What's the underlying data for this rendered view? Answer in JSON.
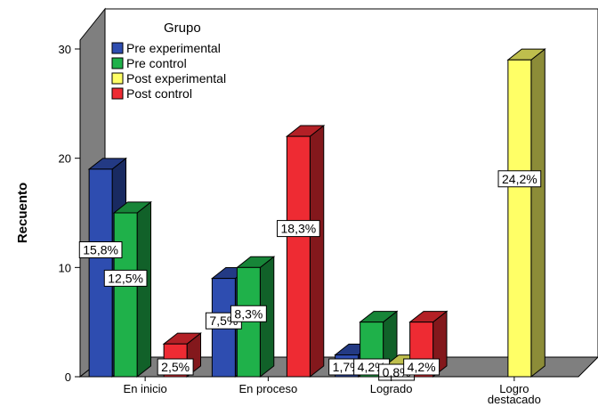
{
  "chart_data": {
    "type": "bar",
    "subtype": "3d-clustered",
    "ylabel": "Recuento",
    "ylim": [
      0,
      30
    ],
    "yticks": [
      0,
      10,
      20,
      30
    ],
    "categories": [
      "En inicio",
      "En proceso",
      "Logrado",
      "Logro destacado"
    ],
    "legend": {
      "title": "Grupo",
      "placement": "top-left"
    },
    "series": [
      {
        "name": "Pre experimental",
        "color": "#2E4DB0",
        "values": [
          19,
          9,
          2,
          0
        ],
        "labels": [
          "15,8%",
          "7,5%",
          "1,7%",
          ""
        ]
      },
      {
        "name": "Pre control",
        "color": "#1FB14A",
        "values": [
          15,
          10,
          5,
          0
        ],
        "labels": [
          "12,5%",
          "8,3%",
          "4,2%",
          ""
        ]
      },
      {
        "name": "Post experimental",
        "color": "#FFFF66",
        "values": [
          0,
          0,
          1,
          29
        ],
        "labels": [
          "",
          "",
          "0,8%",
          "24,2%"
        ]
      },
      {
        "name": "Post control",
        "color": "#EE2B33",
        "values": [
          3,
          22,
          5,
          0
        ],
        "labels": [
          "2,5%",
          "18,3%",
          "4,2%",
          ""
        ]
      }
    ]
  }
}
